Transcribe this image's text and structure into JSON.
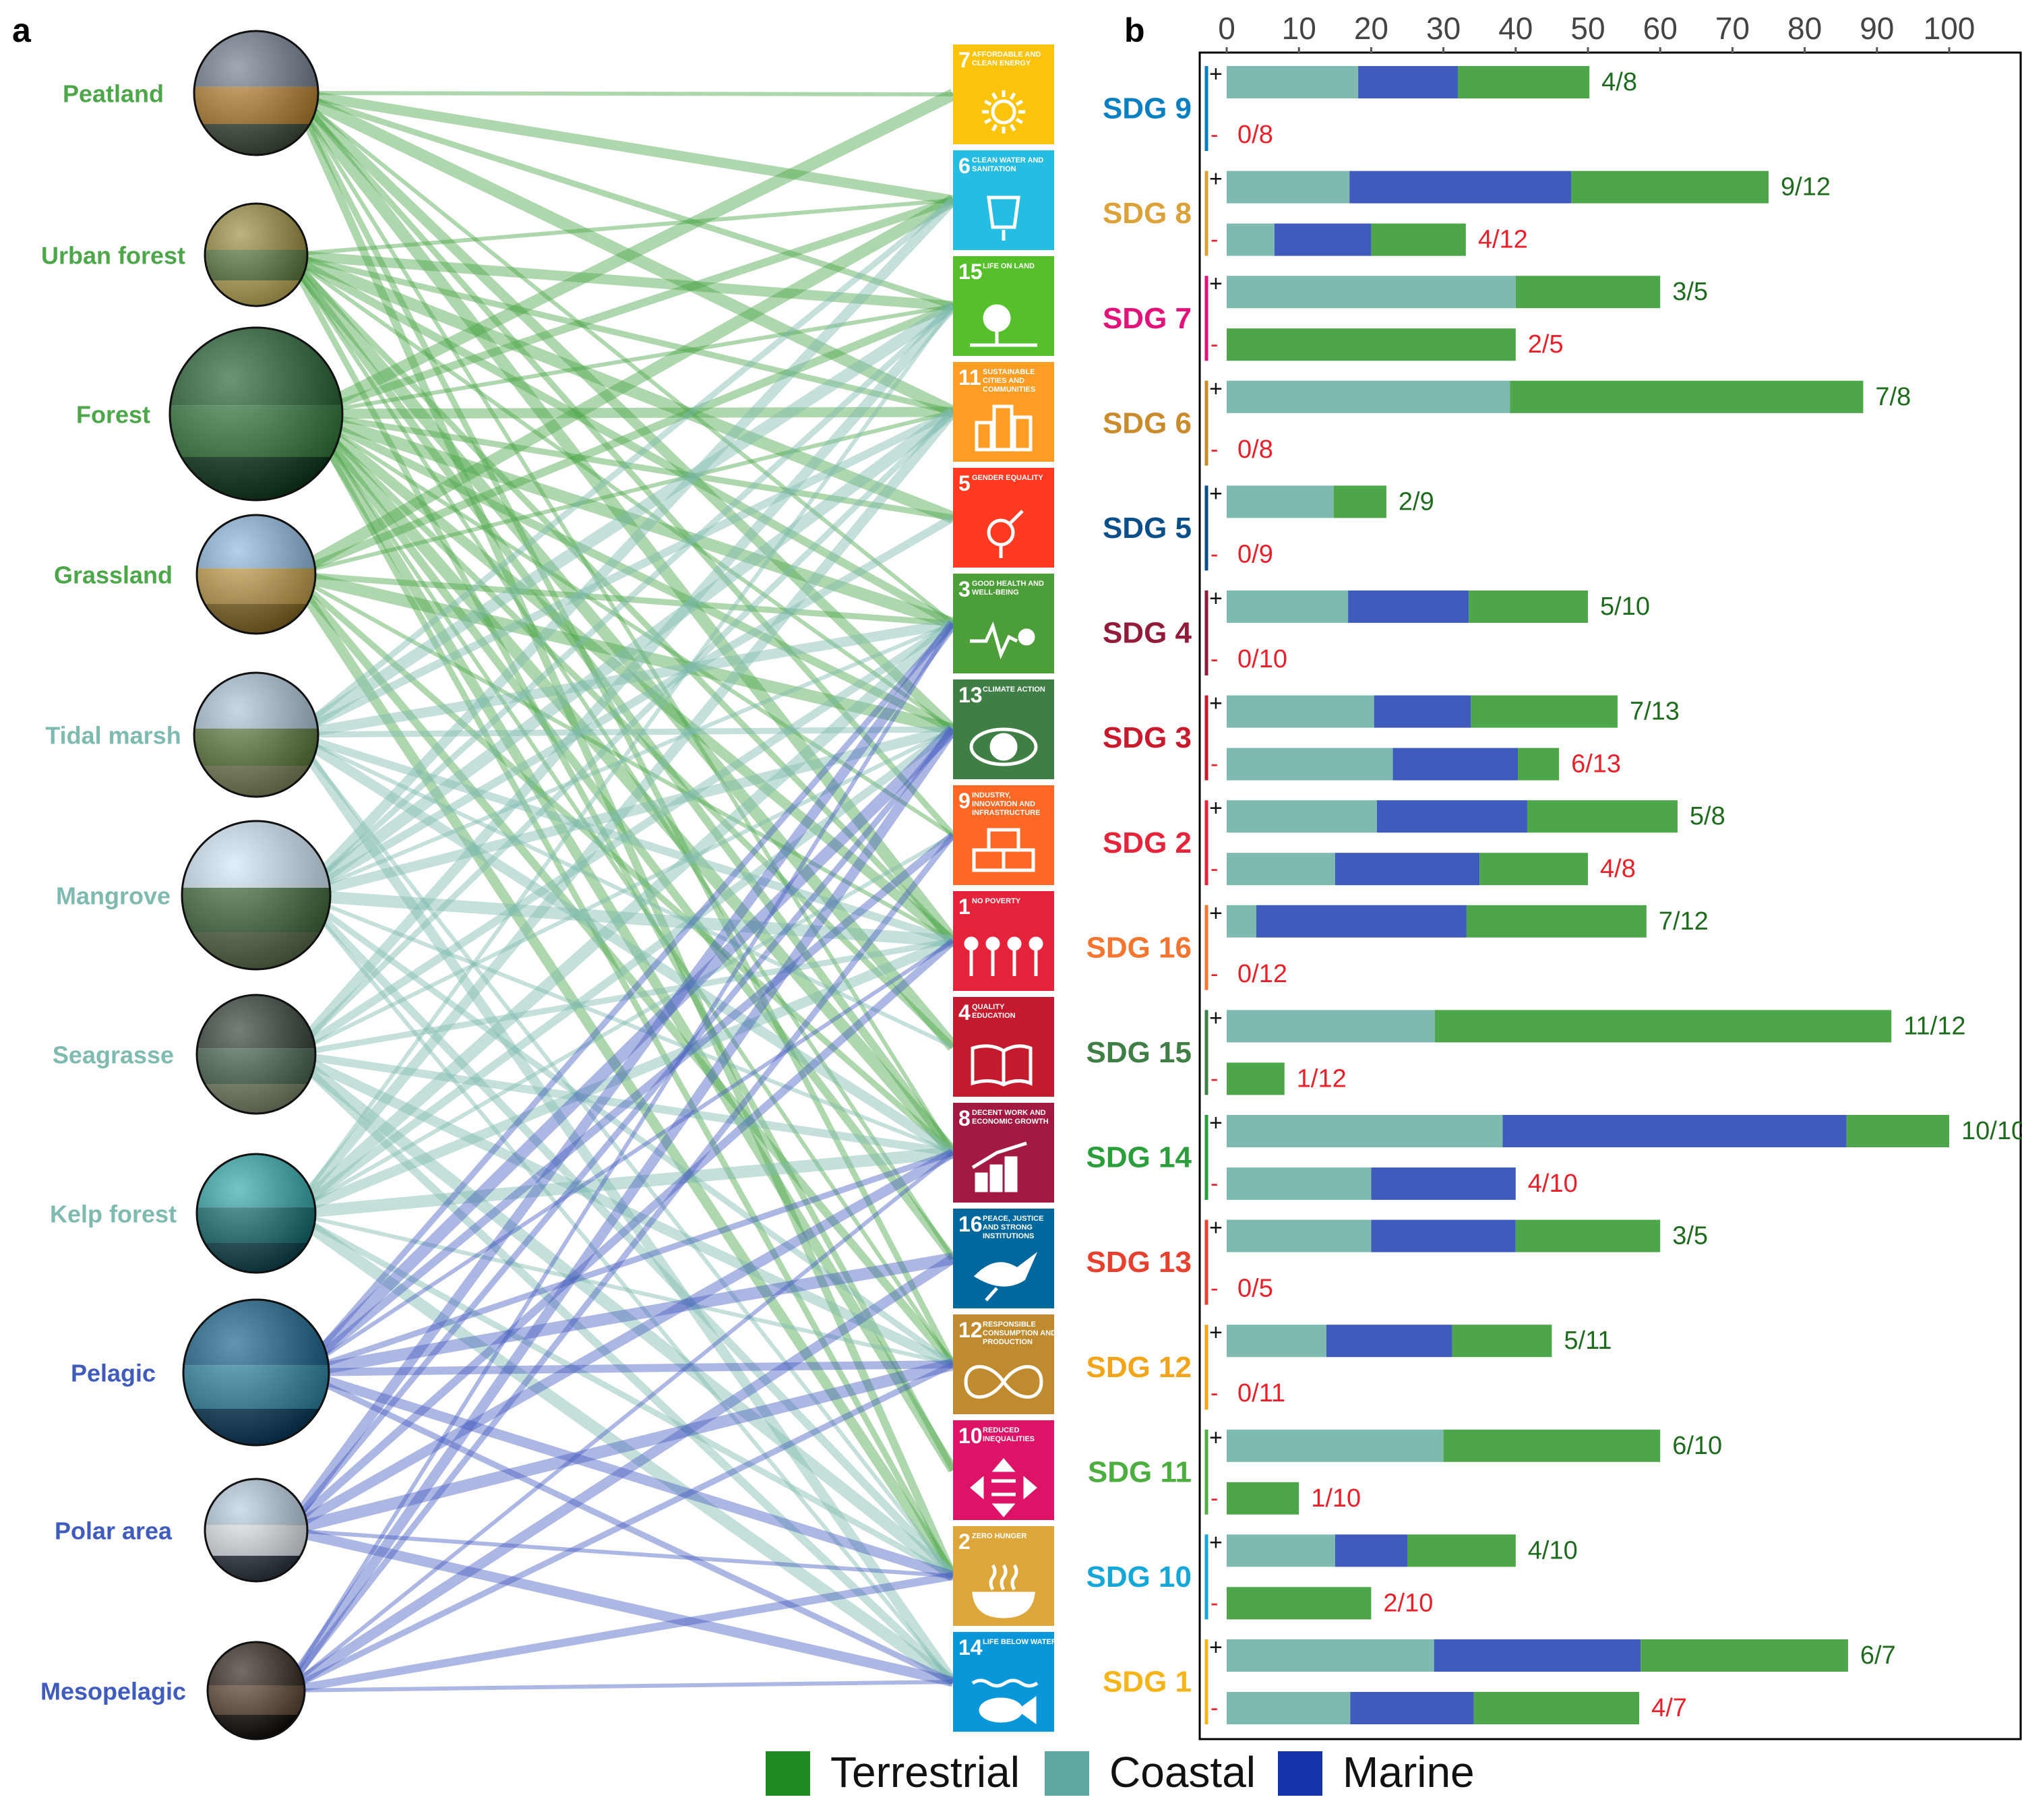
{
  "panel_a_letter": "a",
  "panel_b_letter": "b",
  "colors": {
    "terrestrial": "#4ea64b",
    "coastal": "#7ebab0",
    "marine": "#3f5bbc",
    "link_terrestrial": "#4ea64b",
    "link_coastal": "#7ebab0",
    "link_marine": "#4a5fc0",
    "plus_label": "#1e6b1e",
    "minus_label": "#e8202a"
  },
  "ecosystems": [
    {
      "name": "Peatland",
      "group": "terrestrial",
      "photo": "peatland-photo"
    },
    {
      "name": "Urban forest",
      "group": "terrestrial",
      "photo": "urban-forest-photo"
    },
    {
      "name": "Forest",
      "group": "terrestrial",
      "photo": "forest-photo"
    },
    {
      "name": "Grassland",
      "group": "terrestrial",
      "photo": "grassland-photo"
    },
    {
      "name": "Tidal marsh",
      "group": "coastal",
      "photo": "tidal-marsh-photo"
    },
    {
      "name": "Mangrove",
      "group": "coastal",
      "photo": "mangrove-photo"
    },
    {
      "name": "Seagrasse",
      "group": "coastal",
      "photo": "seagrass-photo"
    },
    {
      "name": "Kelp forest",
      "group": "coastal",
      "photo": "kelp-forest-photo"
    },
    {
      "name": "Pelagic",
      "group": "marine",
      "photo": "pelagic-photo"
    },
    {
      "name": "Polar area",
      "group": "marine",
      "photo": "polar-area-photo"
    },
    {
      "name": "Mesopelagic",
      "group": "marine",
      "photo": "mesopelagic-photo"
    }
  ],
  "sdg_tiles": [
    {
      "num": "7",
      "title": "AFFORDABLE AND CLEAN ENERGY",
      "color": "#fcc30b",
      "icon": "sun-icon"
    },
    {
      "num": "6",
      "title": "CLEAN WATER AND SANITATION",
      "color": "#26bde2",
      "icon": "water-drop-icon"
    },
    {
      "num": "15",
      "title": "LIFE ON LAND",
      "color": "#56c02b",
      "icon": "tree-icon"
    },
    {
      "num": "11",
      "title": "SUSTAINABLE CITIES AND COMMUNITIES",
      "color": "#fd9d24",
      "icon": "city-icon"
    },
    {
      "num": "5",
      "title": "GENDER EQUALITY",
      "color": "#ff3a21",
      "icon": "gender-icon"
    },
    {
      "num": "3",
      "title": "GOOD HEALTH AND WELL-BEING",
      "color": "#4c9f38",
      "icon": "heartbeat-icon"
    },
    {
      "num": "13",
      "title": "CLIMATE ACTION",
      "color": "#3f7e44",
      "icon": "eye-globe-icon"
    },
    {
      "num": "9",
      "title": "INDUSTRY, INNOVATION AND INFRASTRUCTURE",
      "color": "#fd6925",
      "icon": "cubes-icon"
    },
    {
      "num": "1",
      "title": "NO POVERTY",
      "color": "#e5243b",
      "icon": "family-icon"
    },
    {
      "num": "4",
      "title": "QUALITY EDUCATION",
      "color": "#c5192d",
      "icon": "book-icon"
    },
    {
      "num": "8",
      "title": "DECENT WORK AND ECONOMIC GROWTH",
      "color": "#a21942",
      "icon": "growth-chart-icon"
    },
    {
      "num": "16",
      "title": "PEACE, JUSTICE AND STRONG INSTITUTIONS",
      "color": "#00689d",
      "icon": "dove-icon"
    },
    {
      "num": "12",
      "title": "RESPONSIBLE CONSUMPTION AND PRODUCTION",
      "color": "#bf8b2e",
      "icon": "infinity-icon"
    },
    {
      "num": "10",
      "title": "REDUCED INEQUALITIES",
      "color": "#dd1367",
      "icon": "equality-icon"
    },
    {
      "num": "2",
      "title": "ZERO HUNGER",
      "color": "#dda63a",
      "icon": "bowl-icon"
    },
    {
      "num": "14",
      "title": "LIFE BELOW WATER",
      "color": "#0a97d9",
      "icon": "fish-icon"
    }
  ],
  "links": [
    [
      0,
      0
    ],
    [
      0,
      1
    ],
    [
      0,
      2
    ],
    [
      0,
      3
    ],
    [
      0,
      5
    ],
    [
      0,
      6
    ],
    [
      0,
      7
    ],
    [
      0,
      8
    ],
    [
      0,
      10
    ],
    [
      0,
      12
    ],
    [
      0,
      14
    ],
    [
      1,
      1
    ],
    [
      1,
      2
    ],
    [
      1,
      3
    ],
    [
      1,
      4
    ],
    [
      1,
      5
    ],
    [
      1,
      6
    ],
    [
      1,
      8
    ],
    [
      1,
      9
    ],
    [
      1,
      10
    ],
    [
      1,
      11
    ],
    [
      1,
      13
    ],
    [
      2,
      0
    ],
    [
      2,
      1
    ],
    [
      2,
      2
    ],
    [
      2,
      3
    ],
    [
      2,
      4
    ],
    [
      2,
      5
    ],
    [
      2,
      6
    ],
    [
      2,
      7
    ],
    [
      2,
      8
    ],
    [
      2,
      9
    ],
    [
      2,
      10
    ],
    [
      2,
      11
    ],
    [
      2,
      12
    ],
    [
      2,
      13
    ],
    [
      2,
      14
    ],
    [
      3,
      1
    ],
    [
      3,
      2
    ],
    [
      3,
      3
    ],
    [
      3,
      5
    ],
    [
      3,
      6
    ],
    [
      3,
      8
    ],
    [
      3,
      10
    ],
    [
      3,
      12
    ],
    [
      3,
      14
    ],
    [
      4,
      1
    ],
    [
      4,
      2
    ],
    [
      4,
      3
    ],
    [
      4,
      5
    ],
    [
      4,
      6
    ],
    [
      4,
      8
    ],
    [
      4,
      9
    ],
    [
      4,
      10
    ],
    [
      4,
      14
    ],
    [
      4,
      15
    ],
    [
      5,
      1
    ],
    [
      5,
      2
    ],
    [
      5,
      3
    ],
    [
      5,
      4
    ],
    [
      5,
      5
    ],
    [
      5,
      6
    ],
    [
      5,
      8
    ],
    [
      5,
      10
    ],
    [
      5,
      12
    ],
    [
      5,
      14
    ],
    [
      5,
      15
    ],
    [
      6,
      2
    ],
    [
      6,
      3
    ],
    [
      6,
      5
    ],
    [
      6,
      6
    ],
    [
      6,
      8
    ],
    [
      6,
      10
    ],
    [
      6,
      12
    ],
    [
      6,
      14
    ],
    [
      6,
      15
    ],
    [
      7,
      2
    ],
    [
      7,
      3
    ],
    [
      7,
      5
    ],
    [
      7,
      6
    ],
    [
      7,
      7
    ],
    [
      7,
      8
    ],
    [
      7,
      10
    ],
    [
      7,
      12
    ],
    [
      7,
      14
    ],
    [
      7,
      15
    ],
    [
      8,
      5
    ],
    [
      8,
      6
    ],
    [
      8,
      7
    ],
    [
      8,
      8
    ],
    [
      8,
      10
    ],
    [
      8,
      11
    ],
    [
      8,
      12
    ],
    [
      8,
      14
    ],
    [
      8,
      15
    ],
    [
      9,
      5
    ],
    [
      9,
      6
    ],
    [
      9,
      8
    ],
    [
      9,
      10
    ],
    [
      9,
      12
    ],
    [
      9,
      14
    ],
    [
      9,
      15
    ],
    [
      10,
      5
    ],
    [
      10,
      6
    ],
    [
      10,
      7
    ],
    [
      10,
      10
    ],
    [
      10,
      11
    ],
    [
      10,
      12
    ],
    [
      10,
      14
    ],
    [
      10,
      15
    ]
  ],
  "chart_data": {
    "type": "bar",
    "orientation": "horizontal",
    "stacked": true,
    "xlim": [
      0,
      100
    ],
    "xticks": [
      0,
      10,
      20,
      30,
      40,
      50,
      60,
      70,
      80,
      90,
      100
    ],
    "legend": [
      {
        "name": "Terrestrial",
        "color": "#1f8b24"
      },
      {
        "name": "Coastal",
        "color": "#5ea9a1"
      },
      {
        "name": "Marine",
        "color": "#1433a8"
      }
    ],
    "legend_position": "bottom",
    "stack_order": [
      "Coastal",
      "Marine",
      "Terrestrial"
    ],
    "rows": [
      {
        "sdg": "SDG 9",
        "color": "#0a7fc2",
        "plus": {
          "coastal": 18.2,
          "marine": 13.8,
          "terrestrial": 18.2,
          "label": "4/8"
        },
        "minus": {
          "coastal": 0,
          "marine": 0,
          "terrestrial": 0,
          "label": "0/8"
        }
      },
      {
        "sdg": "SDG 8",
        "color": "#dca23a",
        "plus": {
          "coastal": 17,
          "marine": 30.7,
          "terrestrial": 27.3,
          "label": "9/12"
        },
        "minus": {
          "coastal": 6.6,
          "marine": 13.4,
          "terrestrial": 13.1,
          "label": "4/12"
        }
      },
      {
        "sdg": "SDG 7",
        "color": "#e2127a",
        "plus": {
          "coastal": 40,
          "marine": 0,
          "terrestrial": 20,
          "label": "3/5"
        },
        "minus": {
          "coastal": 0,
          "marine": 0,
          "terrestrial": 40,
          "label": "2/5"
        }
      },
      {
        "sdg": "SDG 6",
        "color": "#c98b2c",
        "plus": {
          "coastal": 39.2,
          "marine": 0,
          "terrestrial": 48.9,
          "label": "7/8"
        },
        "minus": {
          "coastal": 0,
          "marine": 0,
          "terrestrial": 0,
          "label": "0/8"
        }
      },
      {
        "sdg": "SDG 5",
        "color": "#0a4f8a",
        "plus": {
          "coastal": 14.8,
          "marine": 0,
          "terrestrial": 7.3,
          "label": "2/9"
        },
        "minus": {
          "coastal": 0,
          "marine": 0,
          "terrestrial": 0,
          "label": "0/9"
        }
      },
      {
        "sdg": "SDG 4",
        "color": "#931b3a",
        "plus": {
          "coastal": 16.8,
          "marine": 16.7,
          "terrestrial": 16.5,
          "label": "5/10"
        },
        "minus": {
          "coastal": 0,
          "marine": 0,
          "terrestrial": 0,
          "label": "0/10"
        }
      },
      {
        "sdg": "SDG 3",
        "color": "#c9192d",
        "plus": {
          "coastal": 20.4,
          "marine": 13.4,
          "terrestrial": 20.3,
          "label": "7/13"
        },
        "minus": {
          "coastal": 23,
          "marine": 17.3,
          "terrestrial": 5.7,
          "label": "6/13"
        }
      },
      {
        "sdg": "SDG 2",
        "color": "#e5243b",
        "plus": {
          "coastal": 20.8,
          "marine": 20.8,
          "terrestrial": 20.8,
          "label": "5/8"
        },
        "minus": {
          "coastal": 15,
          "marine": 20,
          "terrestrial": 15,
          "label": "4/8"
        }
      },
      {
        "sdg": "SDG 16",
        "color": "#f37530",
        "plus": {
          "coastal": 4.1,
          "marine": 29.1,
          "terrestrial": 24.9,
          "label": "7/12"
        },
        "minus": {
          "coastal": 0,
          "marine": 0,
          "terrestrial": 0,
          "label": "0/12"
        }
      },
      {
        "sdg": "SDG 15",
        "color": "#3f7e44",
        "plus": {
          "coastal": 28.8,
          "marine": 0,
          "terrestrial": 63.2,
          "label": "11/12"
        },
        "minus": {
          "coastal": 0,
          "marine": 0,
          "terrestrial": 8,
          "label": "1/12"
        }
      },
      {
        "sdg": "SDG 14",
        "color": "#2b9e3c",
        "plus": {
          "coastal": 38.2,
          "marine": 47.6,
          "terrestrial": 14.2,
          "label": "10/10"
        },
        "minus": {
          "coastal": 20,
          "marine": 20,
          "terrestrial": 0,
          "label": "4/10"
        }
      },
      {
        "sdg": "SDG 13",
        "color": "#e8402e",
        "plus": {
          "coastal": 20,
          "marine": 20,
          "terrestrial": 20,
          "label": "3/5"
        },
        "minus": {
          "coastal": 0,
          "marine": 0,
          "terrestrial": 0,
          "label": "0/5"
        }
      },
      {
        "sdg": "SDG 12",
        "color": "#f2a51a",
        "plus": {
          "coastal": 13.8,
          "marine": 17.4,
          "terrestrial": 13.8,
          "label": "5/11"
        },
        "minus": {
          "coastal": 0,
          "marine": 0,
          "terrestrial": 0,
          "label": "0/11"
        }
      },
      {
        "sdg": "SDG 11",
        "color": "#4cae3e",
        "plus": {
          "coastal": 30,
          "marine": 0,
          "terrestrial": 30,
          "label": "6/10"
        },
        "minus": {
          "coastal": 0,
          "marine": 0,
          "terrestrial": 10,
          "label": "1/10"
        }
      },
      {
        "sdg": "SDG 10",
        "color": "#15a7d7",
        "plus": {
          "coastal": 15,
          "marine": 10,
          "terrestrial": 15,
          "label": "4/10"
        },
        "minus": {
          "coastal": 0,
          "marine": 0,
          "terrestrial": 20,
          "label": "2/10"
        }
      },
      {
        "sdg": "SDG 1",
        "color": "#f4b41a",
        "plus": {
          "coastal": 28.7,
          "marine": 28.6,
          "terrestrial": 28.7,
          "label": "6/7"
        },
        "minus": {
          "coastal": 17.1,
          "marine": 17.1,
          "terrestrial": 22.9,
          "label": "4/7"
        }
      }
    ]
  }
}
